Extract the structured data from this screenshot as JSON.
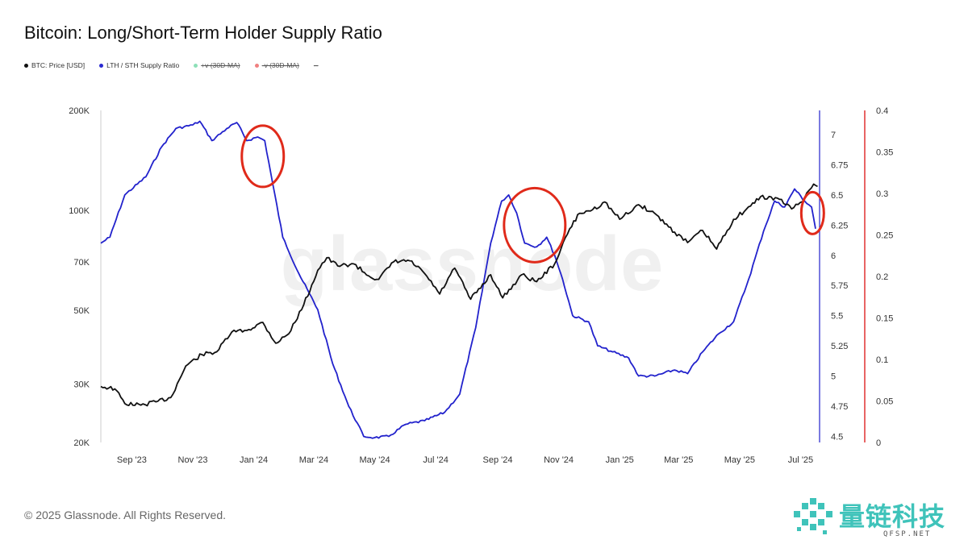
{
  "title": "Bitcoin: Long/Short-Term Holder Supply Ratio",
  "legend": [
    {
      "label": "BTC: Price [USD]",
      "color": "#111111",
      "enabled": true
    },
    {
      "label": "LTH / STH Supply Ratio",
      "color": "#2a2ad2",
      "enabled": true
    },
    {
      "label": "+v (30D-MA)",
      "color": "#8de0b8",
      "enabled": false
    },
    {
      "label": "-v (30D-MA)",
      "color": "#f08080",
      "enabled": false
    },
    {
      "label": "--",
      "color": "#999999",
      "enabled": false
    }
  ],
  "footer": "© 2025 Glassnode. All Rights Reserved.",
  "watermark": "glassnode",
  "brand": {
    "name": "量链科技",
    "sub": "QFSP.NET"
  },
  "colors": {
    "price": "#111111",
    "ratio": "#2222cc",
    "right_axis": "#e03030",
    "ratio_axis": "#2222cc",
    "highlight": "#e02a1a"
  },
  "chart_data": {
    "type": "line",
    "x_range": [
      "2023-08-01",
      "2025-07-20"
    ],
    "x_ticks": [
      {
        "date": "2023-09-01",
        "label": "Sep '23"
      },
      {
        "date": "2023-11-01",
        "label": "Nov '23"
      },
      {
        "date": "2024-01-01",
        "label": "Jan '24"
      },
      {
        "date": "2024-03-01",
        "label": "Mar '24"
      },
      {
        "date": "2024-05-01",
        "label": "May '24"
      },
      {
        "date": "2024-07-01",
        "label": "Jul '24"
      },
      {
        "date": "2024-09-01",
        "label": "Sep '24"
      },
      {
        "date": "2024-11-01",
        "label": "Nov '24"
      },
      {
        "date": "2025-01-01",
        "label": "Jan '25"
      },
      {
        "date": "2025-03-01",
        "label": "Mar '25"
      },
      {
        "date": "2025-05-01",
        "label": "May '25"
      },
      {
        "date": "2025-07-01",
        "label": "Jul '25"
      }
    ],
    "left_axis": {
      "scale": "log",
      "range": [
        20000,
        200000
      ],
      "ticks": [
        {
          "v": 200000,
          "label": "200K"
        },
        {
          "v": 100000,
          "label": "100K"
        },
        {
          "v": 70000,
          "label": "70K"
        },
        {
          "v": 50000,
          "label": "50K"
        },
        {
          "v": 30000,
          "label": "30K"
        },
        {
          "v": 20000,
          "label": "20K"
        }
      ]
    },
    "ratio_axis": {
      "scale": "linear",
      "range": [
        4.45,
        7.2
      ],
      "ticks": [
        "7",
        "6.75",
        "6.5",
        "6.25",
        "6",
        "5.75",
        "5.5",
        "5.25",
        "5",
        "4.75",
        "4.5"
      ]
    },
    "right_axis": {
      "scale": "linear",
      "range": [
        0,
        0.4
      ],
      "ticks": [
        "0.4",
        "0.35",
        "0.3",
        "0.25",
        "0.2",
        "0.15",
        "0.1",
        "0.05",
        "0"
      ]
    },
    "series": [
      {
        "name": "BTC: Price [USD]",
        "axis": "left",
        "points": [
          [
            "2023-08-01",
            29500
          ],
          [
            "2023-08-15",
            29000
          ],
          [
            "2023-08-25",
            26200
          ],
          [
            "2023-09-10",
            25900
          ],
          [
            "2023-09-25",
            26500
          ],
          [
            "2023-10-10",
            27300
          ],
          [
            "2023-10-25",
            34000
          ],
          [
            "2023-11-10",
            36800
          ],
          [
            "2023-11-25",
            37500
          ],
          [
            "2023-12-10",
            43000
          ],
          [
            "2023-12-25",
            43500
          ],
          [
            "2024-01-10",
            46000
          ],
          [
            "2024-01-23",
            39800
          ],
          [
            "2024-02-05",
            42500
          ],
          [
            "2024-02-20",
            52000
          ],
          [
            "2024-03-05",
            66000
          ],
          [
            "2024-03-14",
            72000
          ],
          [
            "2024-03-25",
            68000
          ],
          [
            "2024-04-10",
            69000
          ],
          [
            "2024-04-25",
            63500
          ],
          [
            "2024-05-05",
            62000
          ],
          [
            "2024-05-20",
            70000
          ],
          [
            "2024-06-05",
            70500
          ],
          [
            "2024-06-20",
            64500
          ],
          [
            "2024-07-05",
            56000
          ],
          [
            "2024-07-20",
            67000
          ],
          [
            "2024-08-05",
            54000
          ],
          [
            "2024-08-25",
            64000
          ],
          [
            "2024-09-06",
            54500
          ],
          [
            "2024-09-25",
            64000
          ],
          [
            "2024-10-10",
            61000
          ],
          [
            "2024-10-28",
            69000
          ],
          [
            "2024-11-12",
            88000
          ],
          [
            "2024-11-22",
            98000
          ],
          [
            "2024-12-05",
            100500
          ],
          [
            "2024-12-17",
            106000
          ],
          [
            "2025-01-01",
            94000
          ],
          [
            "2025-01-20",
            104000
          ],
          [
            "2025-02-05",
            98000
          ],
          [
            "2025-02-25",
            86000
          ],
          [
            "2025-03-10",
            80000
          ],
          [
            "2025-03-25",
            87000
          ],
          [
            "2025-04-08",
            76500
          ],
          [
            "2025-04-25",
            94000
          ],
          [
            "2025-05-12",
            103000
          ],
          [
            "2025-05-22",
            110000
          ],
          [
            "2025-06-10",
            108000
          ],
          [
            "2025-06-22",
            101000
          ],
          [
            "2025-07-05",
            109000
          ],
          [
            "2025-07-14",
            120000
          ],
          [
            "2025-07-18",
            118000
          ]
        ]
      },
      {
        "name": "LTH / STH Supply Ratio",
        "axis": "ratio",
        "points": [
          [
            "2023-08-01",
            6.1
          ],
          [
            "2023-08-10",
            6.15
          ],
          [
            "2023-08-25",
            6.5
          ],
          [
            "2023-09-15",
            6.65
          ],
          [
            "2023-10-01",
            6.9
          ],
          [
            "2023-10-15",
            7.05
          ],
          [
            "2023-11-01",
            7.08
          ],
          [
            "2023-11-08",
            7.11
          ],
          [
            "2023-11-20",
            6.95
          ],
          [
            "2023-12-05",
            7.05
          ],
          [
            "2023-12-15",
            7.1
          ],
          [
            "2023-12-25",
            6.95
          ],
          [
            "2024-01-05",
            6.98
          ],
          [
            "2024-01-12",
            6.95
          ],
          [
            "2024-01-18",
            6.68
          ],
          [
            "2024-01-30",
            6.15
          ],
          [
            "2024-02-15",
            5.85
          ],
          [
            "2024-03-05",
            5.55
          ],
          [
            "2024-03-20",
            5.1
          ],
          [
            "2024-04-05",
            4.75
          ],
          [
            "2024-04-20",
            4.5
          ],
          [
            "2024-05-01",
            4.49
          ],
          [
            "2024-05-15",
            4.5
          ],
          [
            "2024-06-01",
            4.6
          ],
          [
            "2024-06-20",
            4.63
          ],
          [
            "2024-07-10",
            4.7
          ],
          [
            "2024-07-25",
            4.85
          ],
          [
            "2024-08-10",
            5.4
          ],
          [
            "2024-08-25",
            6.1
          ],
          [
            "2024-09-05",
            6.45
          ],
          [
            "2024-09-12",
            6.5
          ],
          [
            "2024-09-20",
            6.35
          ],
          [
            "2024-09-28",
            6.1
          ],
          [
            "2024-10-10",
            6.07
          ],
          [
            "2024-10-20",
            6.15
          ],
          [
            "2024-10-28",
            6.0
          ],
          [
            "2024-11-05",
            5.8
          ],
          [
            "2024-11-15",
            5.5
          ],
          [
            "2024-12-01",
            5.45
          ],
          [
            "2024-12-10",
            5.25
          ],
          [
            "2024-12-25",
            5.2
          ],
          [
            "2025-01-10",
            5.15
          ],
          [
            "2025-01-20",
            5.0
          ],
          [
            "2025-02-05",
            5.0
          ],
          [
            "2025-02-25",
            5.05
          ],
          [
            "2025-03-10",
            5.02
          ],
          [
            "2025-03-25",
            5.2
          ],
          [
            "2025-04-10",
            5.35
          ],
          [
            "2025-04-25",
            5.45
          ],
          [
            "2025-05-10",
            5.8
          ],
          [
            "2025-05-25",
            6.2
          ],
          [
            "2025-06-05",
            6.45
          ],
          [
            "2025-06-15",
            6.4
          ],
          [
            "2025-06-25",
            6.55
          ],
          [
            "2025-07-05",
            6.45
          ],
          [
            "2025-07-12",
            6.4
          ],
          [
            "2025-07-16",
            6.22
          ]
        ]
      }
    ],
    "highlights": [
      {
        "date": "2024-01-10",
        "value": 6.82,
        "axis": "ratio"
      },
      {
        "date": "2024-10-08",
        "value": 6.25,
        "axis": "ratio"
      },
      {
        "date": "2025-07-13",
        "value": 6.35,
        "axis": "ratio"
      }
    ]
  }
}
